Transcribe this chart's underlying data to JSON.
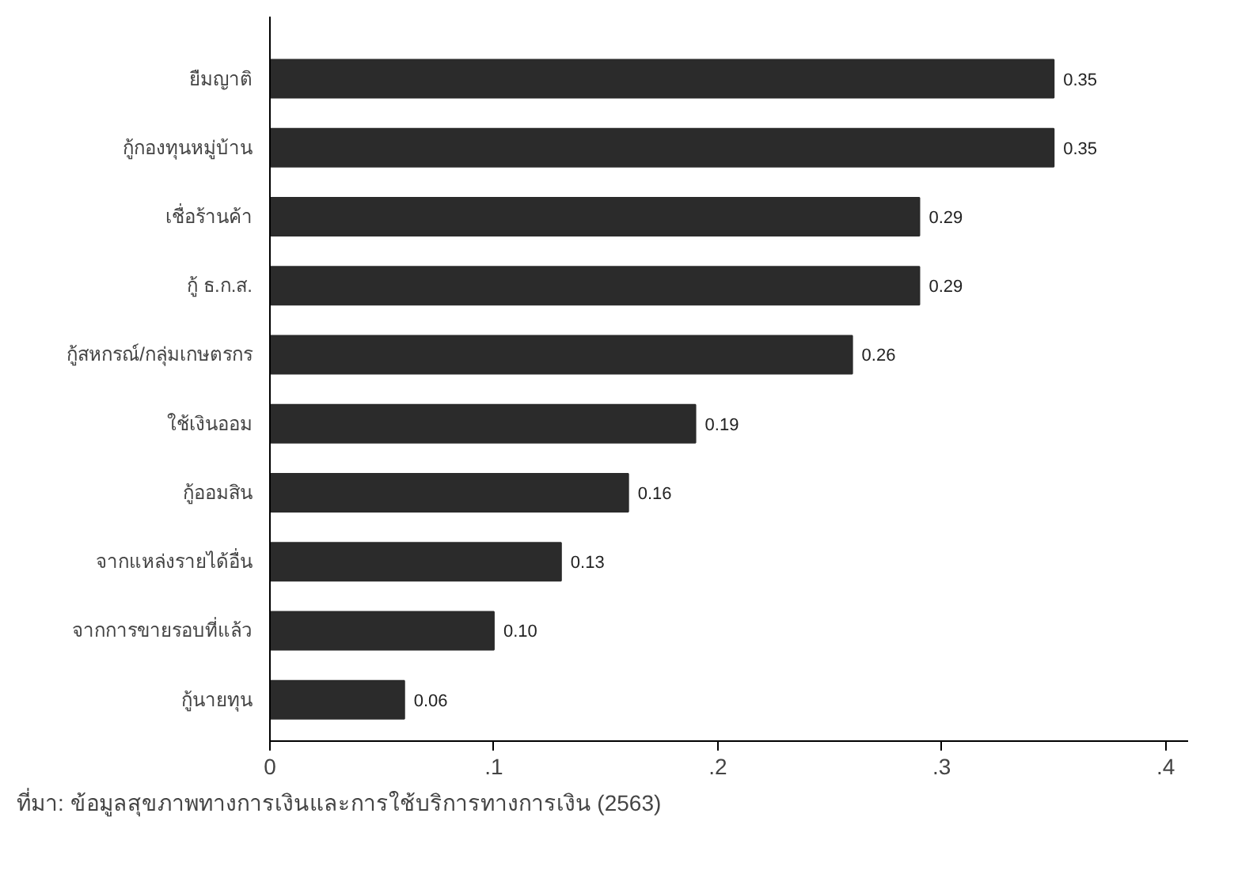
{
  "chart_data": {
    "type": "bar",
    "orientation": "horizontal",
    "categories": [
      "ยืมญาติ",
      "กู้กองทุนหมู่บ้าน",
      "เชื่อร้านค้า",
      "กู้ ธ.ก.ส.",
      "กู้สหกรณ์/กลุ่มเกษตรกร",
      "ใช้เงินออม",
      "กู้ออมสิน",
      "จากแหล่งรายได้อื่น",
      "จากการขายรอบที่แล้ว",
      "กู้นายทุน"
    ],
    "values": [
      0.35,
      0.35,
      0.29,
      0.29,
      0.26,
      0.19,
      0.16,
      0.13,
      0.1,
      0.06
    ],
    "value_labels": [
      "0.35",
      "0.35",
      "0.29",
      "0.29",
      "0.26",
      "0.19",
      "0.16",
      "0.13",
      "0.10",
      "0.06"
    ],
    "color": "#2b2b2b",
    "xlim": [
      0,
      0.41
    ],
    "xticks": [
      0,
      {
        "value": 0.1,
        "label": ".1"
      },
      {
        "value": 0.2,
        "label": ".2"
      },
      {
        "value": 0.3,
        "label": ".3"
      },
      {
        "value": 0.4,
        "label": ".4"
      }
    ],
    "grid": false,
    "annotations": [
      "ที่มา: ข้อมูลสุขภาพทางการเงินและการใช้บริการทางการเงิน (2563)"
    ]
  }
}
